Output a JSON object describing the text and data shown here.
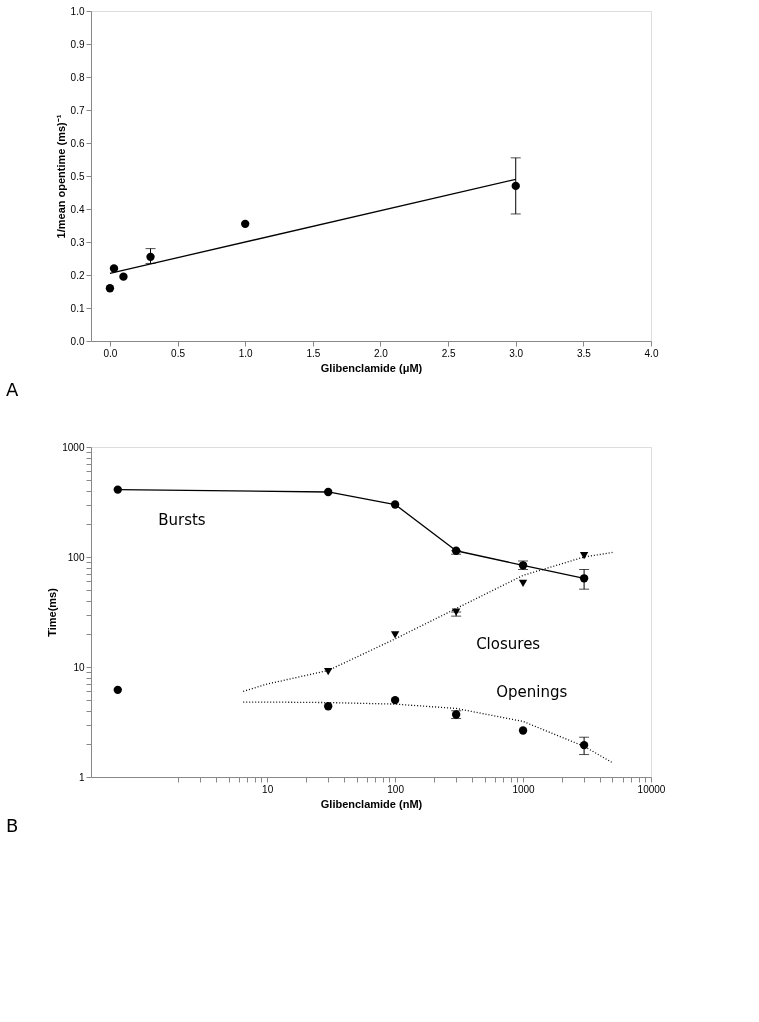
{
  "chart_data": [
    {
      "type": "scatter",
      "xlabel": "Glibenclamide (μM)",
      "ylabel": "1/mean opentime (ms)⁻¹",
      "annotations": [
        "A"
      ],
      "grid": false,
      "xlim": [
        -0.14,
        4.0
      ],
      "ylim": [
        0,
        1.0
      ],
      "xticks": [
        {
          "value": 0,
          "label": "0.0"
        },
        {
          "value": 0.5,
          "label": "0.5"
        },
        {
          "value": 1,
          "label": "1.0"
        },
        {
          "value": 1.5,
          "label": "1.5"
        },
        {
          "value": 2,
          "label": "2.0"
        },
        {
          "value": 2.5,
          "label": "2.5"
        },
        {
          "value": 3,
          "label": "3.0"
        },
        {
          "value": 3.5,
          "label": "3.5"
        },
        {
          "value": 4,
          "label": "4.0"
        }
      ],
      "yticks": [
        {
          "value": 0,
          "label": "0.0"
        },
        0.1,
        0.2,
        0.3,
        0.4,
        0.5,
        0.6,
        0.7,
        0.8,
        0.9,
        {
          "value": 1,
          "label": "1.0"
        }
      ],
      "series": [
        {
          "type": "scatter",
          "color": "#000000",
          "marker": "circle",
          "x": [
            0,
            0.03,
            0.1,
            0.3,
            1.0,
            3.0
          ],
          "values": [
            0.16,
            0.22,
            0.195,
            0.255,
            0.355,
            0.47
          ],
          "errors": [
            null,
            null,
            null,
            [
              0.235,
              0.28
            ],
            null,
            [
              0.385,
              0.555
            ]
          ]
        },
        {
          "type": "line",
          "color": "#000000",
          "marker": "none",
          "line_style": "solid",
          "x": [
            0,
            3.0
          ],
          "values": [
            0.205,
            0.49
          ]
        }
      ]
    },
    {
      "type": "scatter",
      "xlabel": "Glibenclamide (nM)",
      "ylabel": "Time(ms)",
      "annotations": [
        "B"
      ],
      "log": "xy",
      "grid": false,
      "xlim": [
        0.42,
        10000
      ],
      "ylim": [
        1,
        1000
      ],
      "xticks": [
        {
          "value": 2,
          "label": null
        },
        {
          "value": 3,
          "label": null
        },
        {
          "value": 4,
          "label": null
        },
        {
          "value": 5,
          "label": null
        },
        {
          "value": 6,
          "label": null
        },
        {
          "value": 7,
          "label": null
        },
        {
          "value": 8,
          "label": null
        },
        {
          "value": 9,
          "label": null
        },
        10,
        {
          "value": 20,
          "label": null
        },
        {
          "value": 30,
          "label": null
        },
        {
          "value": 40,
          "label": null
        },
        {
          "value": 50,
          "label": null
        },
        {
          "value": 60,
          "label": null
        },
        {
          "value": 70,
          "label": null
        },
        {
          "value": 80,
          "label": null
        },
        {
          "value": 90,
          "label": null
        },
        100,
        {
          "value": 200,
          "label": null
        },
        {
          "value": 300,
          "label": null
        },
        {
          "value": 400,
          "label": null
        },
        {
          "value": 500,
          "label": null
        },
        {
          "value": 600,
          "label": null
        },
        {
          "value": 700,
          "label": null
        },
        {
          "value": 800,
          "label": null
        },
        {
          "value": 900,
          "label": null
        },
        1000,
        {
          "value": 2000,
          "label": null
        },
        {
          "value": 3000,
          "label": null
        },
        {
          "value": 4000,
          "label": null
        },
        {
          "value": 5000,
          "label": null
        },
        {
          "value": 6000,
          "label": null
        },
        {
          "value": 7000,
          "label": null
        },
        {
          "value": 8000,
          "label": null
        },
        {
          "value": 9000,
          "label": null
        },
        10000
      ],
      "yticks": [
        1,
        {
          "value": 2,
          "label": null
        },
        {
          "value": 3,
          "label": null
        },
        {
          "value": 4,
          "label": null
        },
        {
          "value": 5,
          "label": null
        },
        {
          "value": 6,
          "label": null
        },
        {
          "value": 7,
          "label": null
        },
        {
          "value": 8,
          "label": null
        },
        {
          "value": 9,
          "label": null
        },
        10,
        {
          "value": 20,
          "label": null
        },
        {
          "value": 30,
          "label": null
        },
        {
          "value": 40,
          "label": null
        },
        {
          "value": 50,
          "label": null
        },
        {
          "value": 60,
          "label": null
        },
        {
          "value": 70,
          "label": null
        },
        {
          "value": 80,
          "label": null
        },
        {
          "value": 90,
          "label": null
        },
        100,
        {
          "value": 200,
          "label": null
        },
        {
          "value": 300,
          "label": null
        },
        {
          "value": 400,
          "label": null
        },
        {
          "value": 500,
          "label": null
        },
        {
          "value": 600,
          "label": null
        },
        {
          "value": 700,
          "label": null
        },
        {
          "value": 800,
          "label": null
        },
        {
          "value": 900,
          "label": null
        },
        1000
      ],
      "series": [
        {
          "type": "line",
          "name": "Bursts",
          "color": "#000000",
          "marker": "circle",
          "line_style": "solid",
          "x": [
            0.68,
            30,
            100,
            300,
            1000,
            3000
          ],
          "values": [
            410,
            390,
            300,
            114,
            84,
            64
          ],
          "errors": [
            null,
            null,
            null,
            [
              106,
              114
            ],
            [
              77,
              92
            ],
            [
              51,
              77
            ]
          ]
        },
        {
          "type": "scatter",
          "name": "Closures",
          "color": "#000000",
          "marker": "triangle",
          "x": [
            30,
            100,
            300,
            1000,
            3000
          ],
          "values": [
            9.1,
            19.6,
            31.6,
            57.5,
            103
          ],
          "errors": [
            null,
            null,
            [
              29,
              31.6
            ],
            null,
            null
          ]
        },
        {
          "type": "scatter",
          "name": "Openings",
          "color": "#000000",
          "marker": "circle",
          "x": [
            0.68,
            30,
            100,
            300,
            1000,
            3000
          ],
          "values": [
            6.2,
            4.4,
            5.0,
            3.7,
            2.65,
            1.95
          ],
          "errors": [
            null,
            null,
            null,
            [
              3.4,
              4.0
            ],
            null,
            [
              1.6,
              2.3
            ]
          ]
        },
        {
          "type": "line",
          "color": "#000000",
          "marker": "none",
          "line_style": "dotted",
          "x": [
            6.5,
            10,
            30,
            100,
            300,
            1000,
            3000,
            5000
          ],
          "values": [
            6.0,
            7.0,
            9.3,
            18,
            34,
            68,
            100,
            110
          ]
        },
        {
          "type": "line",
          "color": "#000000",
          "marker": "none",
          "line_style": "dotted",
          "x": [
            6.5,
            10,
            30,
            100,
            300,
            1000,
            3000,
            5000
          ],
          "values": [
            4.8,
            4.8,
            4.75,
            4.6,
            4.2,
            3.2,
            1.9,
            1.35
          ]
        }
      ]
    }
  ]
}
